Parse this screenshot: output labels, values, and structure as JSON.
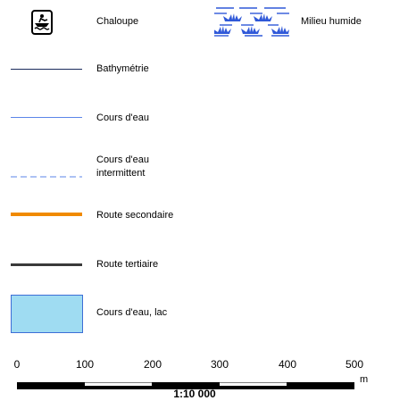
{
  "legend": {
    "items": [
      {
        "label": "Chaloupe",
        "symbol": "boat-icon"
      },
      {
        "label": "Milieu humide",
        "symbol": "wetland-pattern"
      },
      {
        "label": "Bathymétrie",
        "symbol": "line",
        "color": "#1a2b5c"
      },
      {
        "label": "Cours d'eau",
        "symbol": "line",
        "color": "#5b85e8"
      },
      {
        "label_lines": [
          "Cours d'eau",
          "intermittent"
        ],
        "symbol": "dashed-line",
        "color": "#5b85e8"
      },
      {
        "label": "Route secondaire",
        "symbol": "thick-line",
        "color": "#f08a00"
      },
      {
        "label": "Route tertiaire",
        "symbol": "thick-line",
        "color": "#3a3a3a"
      },
      {
        "label": "Cours d'eau, lac",
        "symbol": "fill",
        "color": "#9fdcf2",
        "stroke": "#3d6ed6"
      }
    ]
  },
  "scale_bar": {
    "ticks": [
      "0",
      "100",
      "200",
      "300",
      "400",
      "500"
    ],
    "unit": "m",
    "ratio": "1:10 000"
  }
}
